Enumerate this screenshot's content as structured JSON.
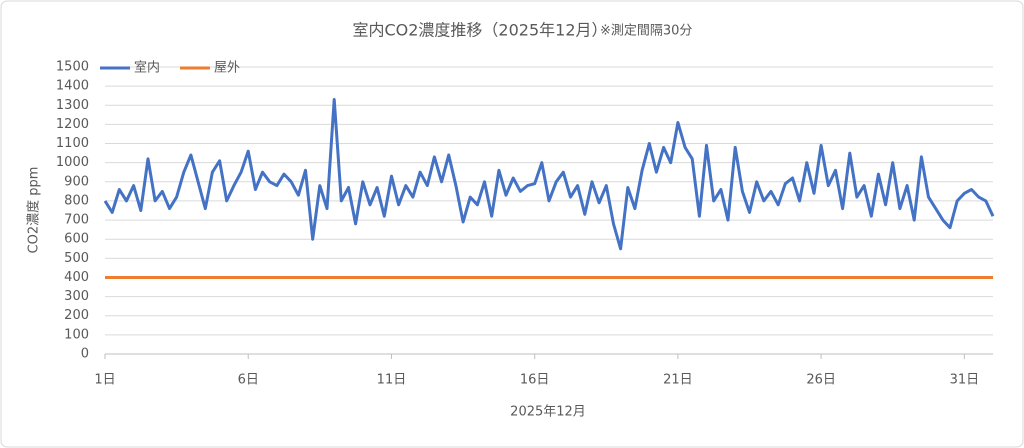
{
  "chart_data": {
    "type": "line",
    "title": "室内CO2濃度推移（2025年12月）",
    "subtitle": "※測定間隔30分",
    "x_label": "2025年12月",
    "y_label": "CO2濃度 ppm",
    "xlim": [
      1,
      32
    ],
    "xticks": [
      {
        "value": 1,
        "label": "1日"
      },
      {
        "value": 6,
        "label": "6日"
      },
      {
        "value": 11,
        "label": "11日"
      },
      {
        "value": 16,
        "label": "16日"
      },
      {
        "value": 21,
        "label": "21日"
      },
      {
        "value": 26,
        "label": "26日"
      },
      {
        "value": 31,
        "label": "31日"
      }
    ],
    "ylim": [
      0,
      1500
    ],
    "yticks": [
      0,
      100,
      200,
      300,
      400,
      500,
      600,
      700,
      800,
      900,
      1000,
      1100,
      1200,
      1300,
      1400,
      1500
    ],
    "grid": true,
    "legend": "top-left",
    "series": [
      {
        "name": "室内",
        "color": "#4472c4",
        "x": [
          1,
          1.25,
          1.5,
          1.75,
          2,
          2.25,
          2.5,
          2.75,
          3,
          3.25,
          3.5,
          3.75,
          4,
          4.25,
          4.5,
          4.75,
          5,
          5.25,
          5.5,
          5.75,
          6,
          6.25,
          6.5,
          6.75,
          7,
          7.25,
          7.5,
          7.75,
          8,
          8.25,
          8.5,
          8.75,
          9,
          9.25,
          9.5,
          9.75,
          10,
          10.25,
          10.5,
          10.75,
          11,
          11.25,
          11.5,
          11.75,
          12,
          12.25,
          12.5,
          12.75,
          13,
          13.25,
          13.5,
          13.75,
          14,
          14.25,
          14.5,
          14.75,
          15,
          15.25,
          15.5,
          15.75,
          16,
          16.25,
          16.5,
          16.75,
          17,
          17.25,
          17.5,
          17.75,
          18,
          18.25,
          18.5,
          18.75,
          19,
          19.25,
          19.5,
          19.75,
          20,
          20.25,
          20.5,
          20.75,
          21,
          21.25,
          21.5,
          21.75,
          22,
          22.25,
          22.5,
          22.75,
          23,
          23.25,
          23.5,
          23.75,
          24,
          24.25,
          24.5,
          24.75,
          25,
          25.25,
          25.5,
          25.75,
          26,
          26.25,
          26.5,
          26.75,
          27,
          27.25,
          27.5,
          27.75,
          28,
          28.25,
          28.5,
          28.75,
          29,
          29.25,
          29.5,
          29.75,
          30,
          30.25,
          30.5,
          30.75,
          31,
          31.25,
          31.5,
          31.75,
          32
        ],
        "values": [
          800,
          740,
          860,
          800,
          880,
          750,
          1020,
          800,
          850,
          760,
          820,
          950,
          1040,
          900,
          760,
          950,
          1010,
          800,
          880,
          950,
          1060,
          860,
          950,
          900,
          880,
          940,
          900,
          830,
          960,
          600,
          880,
          760,
          1330,
          800,
          870,
          680,
          900,
          780,
          870,
          720,
          930,
          780,
          880,
          820,
          950,
          880,
          1030,
          900,
          1040,
          880,
          690,
          820,
          780,
          900,
          720,
          960,
          830,
          920,
          850,
          880,
          890,
          1000,
          800,
          900,
          950,
          820,
          880,
          730,
          900,
          790,
          880,
          680,
          550,
          870,
          760,
          960,
          1100,
          950,
          1080,
          1000,
          1210,
          1080,
          1020,
          720,
          1090,
          800,
          860,
          700,
          1080,
          850,
          740,
          900,
          800,
          850,
          780,
          890,
          920,
          800,
          1000,
          840,
          1090,
          880,
          960,
          760,
          1050,
          820,
          880,
          720,
          940,
          780,
          1000,
          760,
          880,
          700,
          1030,
          820,
          760,
          700,
          660,
          800,
          840,
          860,
          820,
          800,
          720
        ]
      },
      {
        "name": "屋外",
        "color": "#ed7d31",
        "x": [
          1,
          32
        ],
        "values": [
          400,
          400
        ]
      }
    ]
  }
}
